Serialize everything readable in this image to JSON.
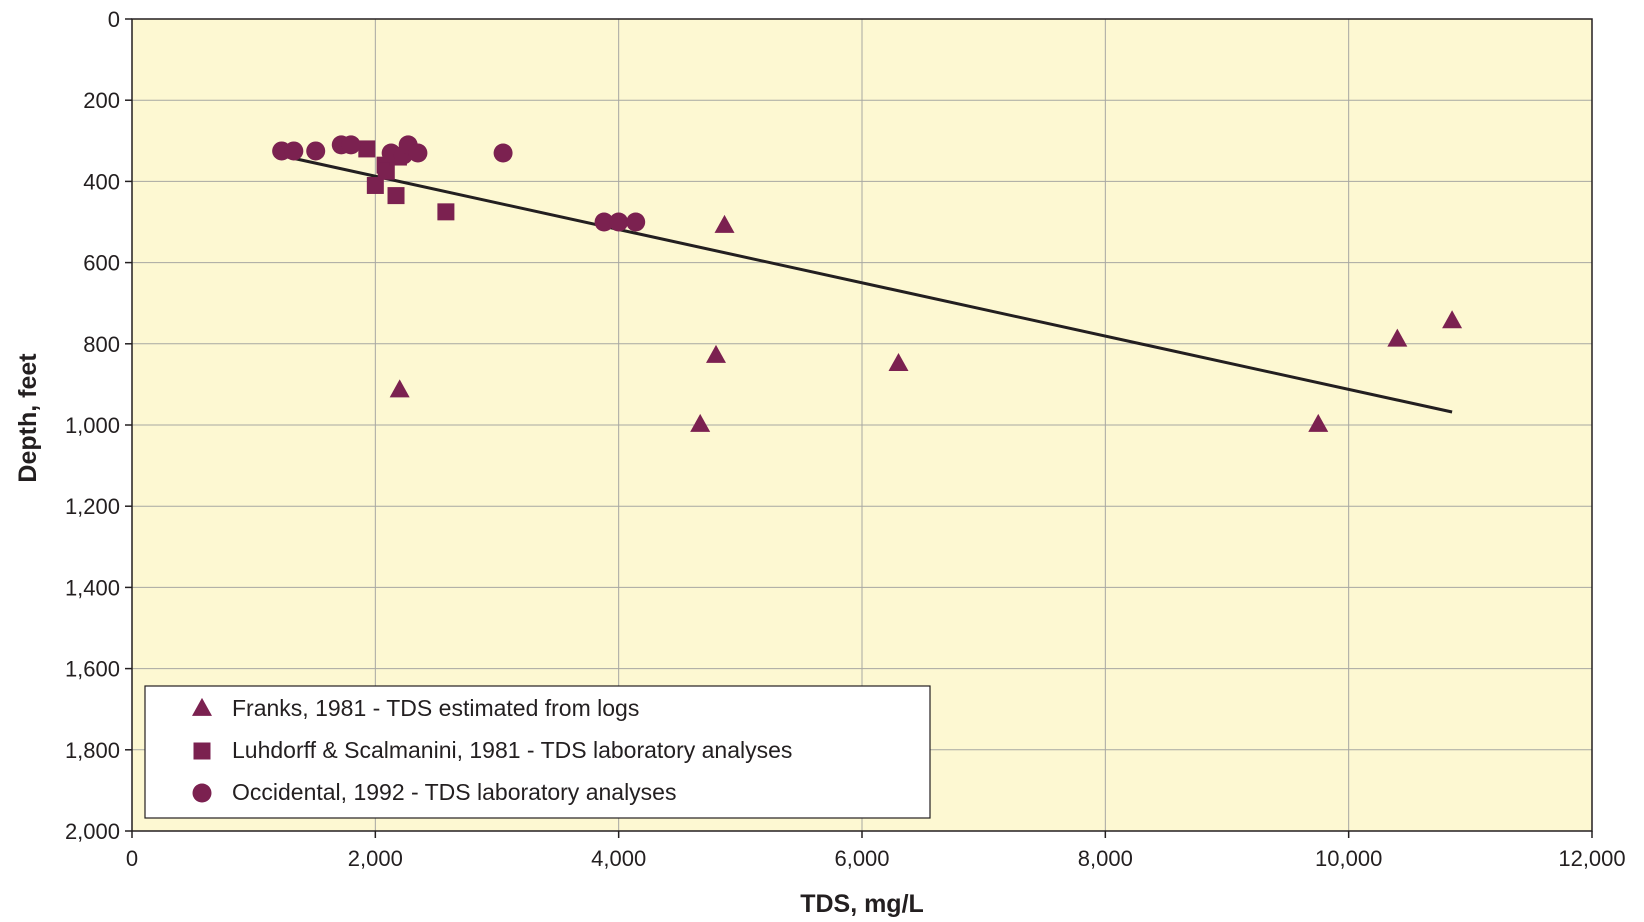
{
  "chart_data": {
    "type": "scatter",
    "title": "",
    "xlabel": "TDS, mg/L",
    "ylabel": "Depth, feet",
    "xlim": [
      0,
      12000
    ],
    "ylim": [
      0,
      2000
    ],
    "y_inverted": true,
    "x_ticks": [
      0,
      2000,
      4000,
      6000,
      8000,
      10000,
      12000
    ],
    "x_tick_labels": [
      "0",
      "2,000",
      "4,000",
      "6,000",
      "8,000",
      "10,000",
      "12,000"
    ],
    "y_ticks": [
      0,
      200,
      400,
      600,
      800,
      1000,
      1200,
      1400,
      1600,
      1800,
      2000
    ],
    "y_tick_labels": [
      "0",
      "200",
      "400",
      "600",
      "800",
      "1,000",
      "1,200",
      "1,400",
      "1,600",
      "1,800",
      "2,000"
    ],
    "grid": true,
    "plot_background": "#fdf8d2",
    "legend_position": "bottom-left",
    "series": [
      {
        "name": "Franks, 1981 - TDS estimated from logs",
        "marker": "triangle",
        "color": "#7b2150",
        "points": [
          [
            2200,
            915
          ],
          [
            4670,
            1000
          ],
          [
            4800,
            830
          ],
          [
            4870,
            510
          ],
          [
            6300,
            850
          ],
          [
            9750,
            1000
          ],
          [
            10400,
            790
          ],
          [
            10850,
            745
          ]
        ]
      },
      {
        "name": "Luhdorff & Scalmanini, 1981 - TDS laboratory analyses",
        "marker": "square",
        "color": "#7b2150",
        "points": [
          [
            1930,
            320
          ],
          [
            2000,
            410
          ],
          [
            2080,
            360
          ],
          [
            2090,
            375
          ],
          [
            2170,
            435
          ],
          [
            2190,
            340
          ],
          [
            2580,
            475
          ]
        ]
      },
      {
        "name": "Occidental, 1992 - TDS laboratory analyses",
        "marker": "circle",
        "color": "#7b2150",
        "points": [
          [
            1230,
            325
          ],
          [
            1330,
            325
          ],
          [
            1510,
            325
          ],
          [
            1720,
            310
          ],
          [
            1800,
            310
          ],
          [
            2130,
            330
          ],
          [
            2230,
            335
          ],
          [
            2270,
            310
          ],
          [
            2350,
            330
          ],
          [
            3050,
            330
          ],
          [
            3880,
            500
          ],
          [
            4000,
            500
          ],
          [
            4140,
            500
          ]
        ]
      }
    ],
    "trendline": {
      "x": [
        1250,
        10850
      ],
      "y": [
        338,
        968
      ],
      "color": "#231f20"
    }
  }
}
